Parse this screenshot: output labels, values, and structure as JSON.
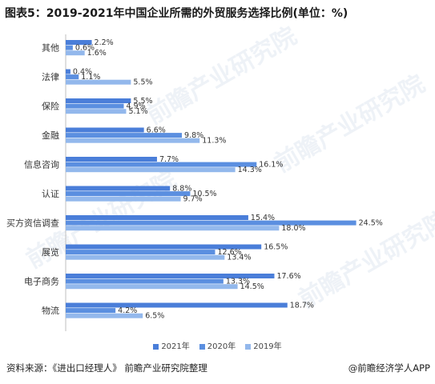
{
  "title": "图表5：2019-2021年中国企业所需的外贸服务选择比例(单位：%)",
  "footer": {
    "source": "资料来源：《进出口经理人》 前瞻产业研究院整理",
    "brand": "@前瞻经济学人APP"
  },
  "watermark": "前瞻产业研究院",
  "colors": {
    "2021年": "#4a7ed9",
    "2020年": "#5b8fe0",
    "2019年": "#93b8ec"
  },
  "chart_data": {
    "type": "bar",
    "orientation": "horizontal",
    "categories": [
      "其他",
      "法律",
      "保险",
      "金融",
      "信息咨询",
      "认证",
      "买方资信调查",
      "展览",
      "电子商务",
      "物流"
    ],
    "series": [
      {
        "name": "2021年",
        "values": [
          2.2,
          0.4,
          5.5,
          6.6,
          7.7,
          8.8,
          15.4,
          16.5,
          17.6,
          18.7
        ]
      },
      {
        "name": "2020年",
        "values": [
          0.6,
          1.1,
          4.9,
          9.8,
          16.1,
          10.5,
          24.5,
          12.6,
          13.3,
          4.2
        ]
      },
      {
        "name": "2019年",
        "values": [
          1.6,
          5.5,
          5.1,
          11.3,
          14.3,
          9.7,
          18.0,
          13.4,
          14.5,
          6.5
        ]
      }
    ],
    "value_labels": [
      [
        "2.2%",
        "0.4%",
        "5.5%",
        "6.6%",
        "7.7%",
        "8.8%",
        "15.4%",
        "16.5%",
        "17.6%",
        "18.7%"
      ],
      [
        "0.6%",
        "1.1%",
        "4.9%",
        "9.8%",
        "16.1%",
        "10.5%",
        "24.5%",
        "12.6%",
        "13.3%",
        "4.2%"
      ],
      [
        "1.6%",
        "5.5%",
        "5.1%",
        "11.3%",
        "14.3%",
        "9.7%",
        "18.0%",
        "13.4%",
        "14.5%",
        "6.5%"
      ]
    ],
    "xlim": [
      0,
      30
    ],
    "xticks": [
      "0.0%",
      "5.0%",
      "10.0%",
      "15.0%",
      "20.0%",
      "25.0%",
      "30.0%"
    ],
    "grid": false,
    "legend_position": "bottom"
  }
}
